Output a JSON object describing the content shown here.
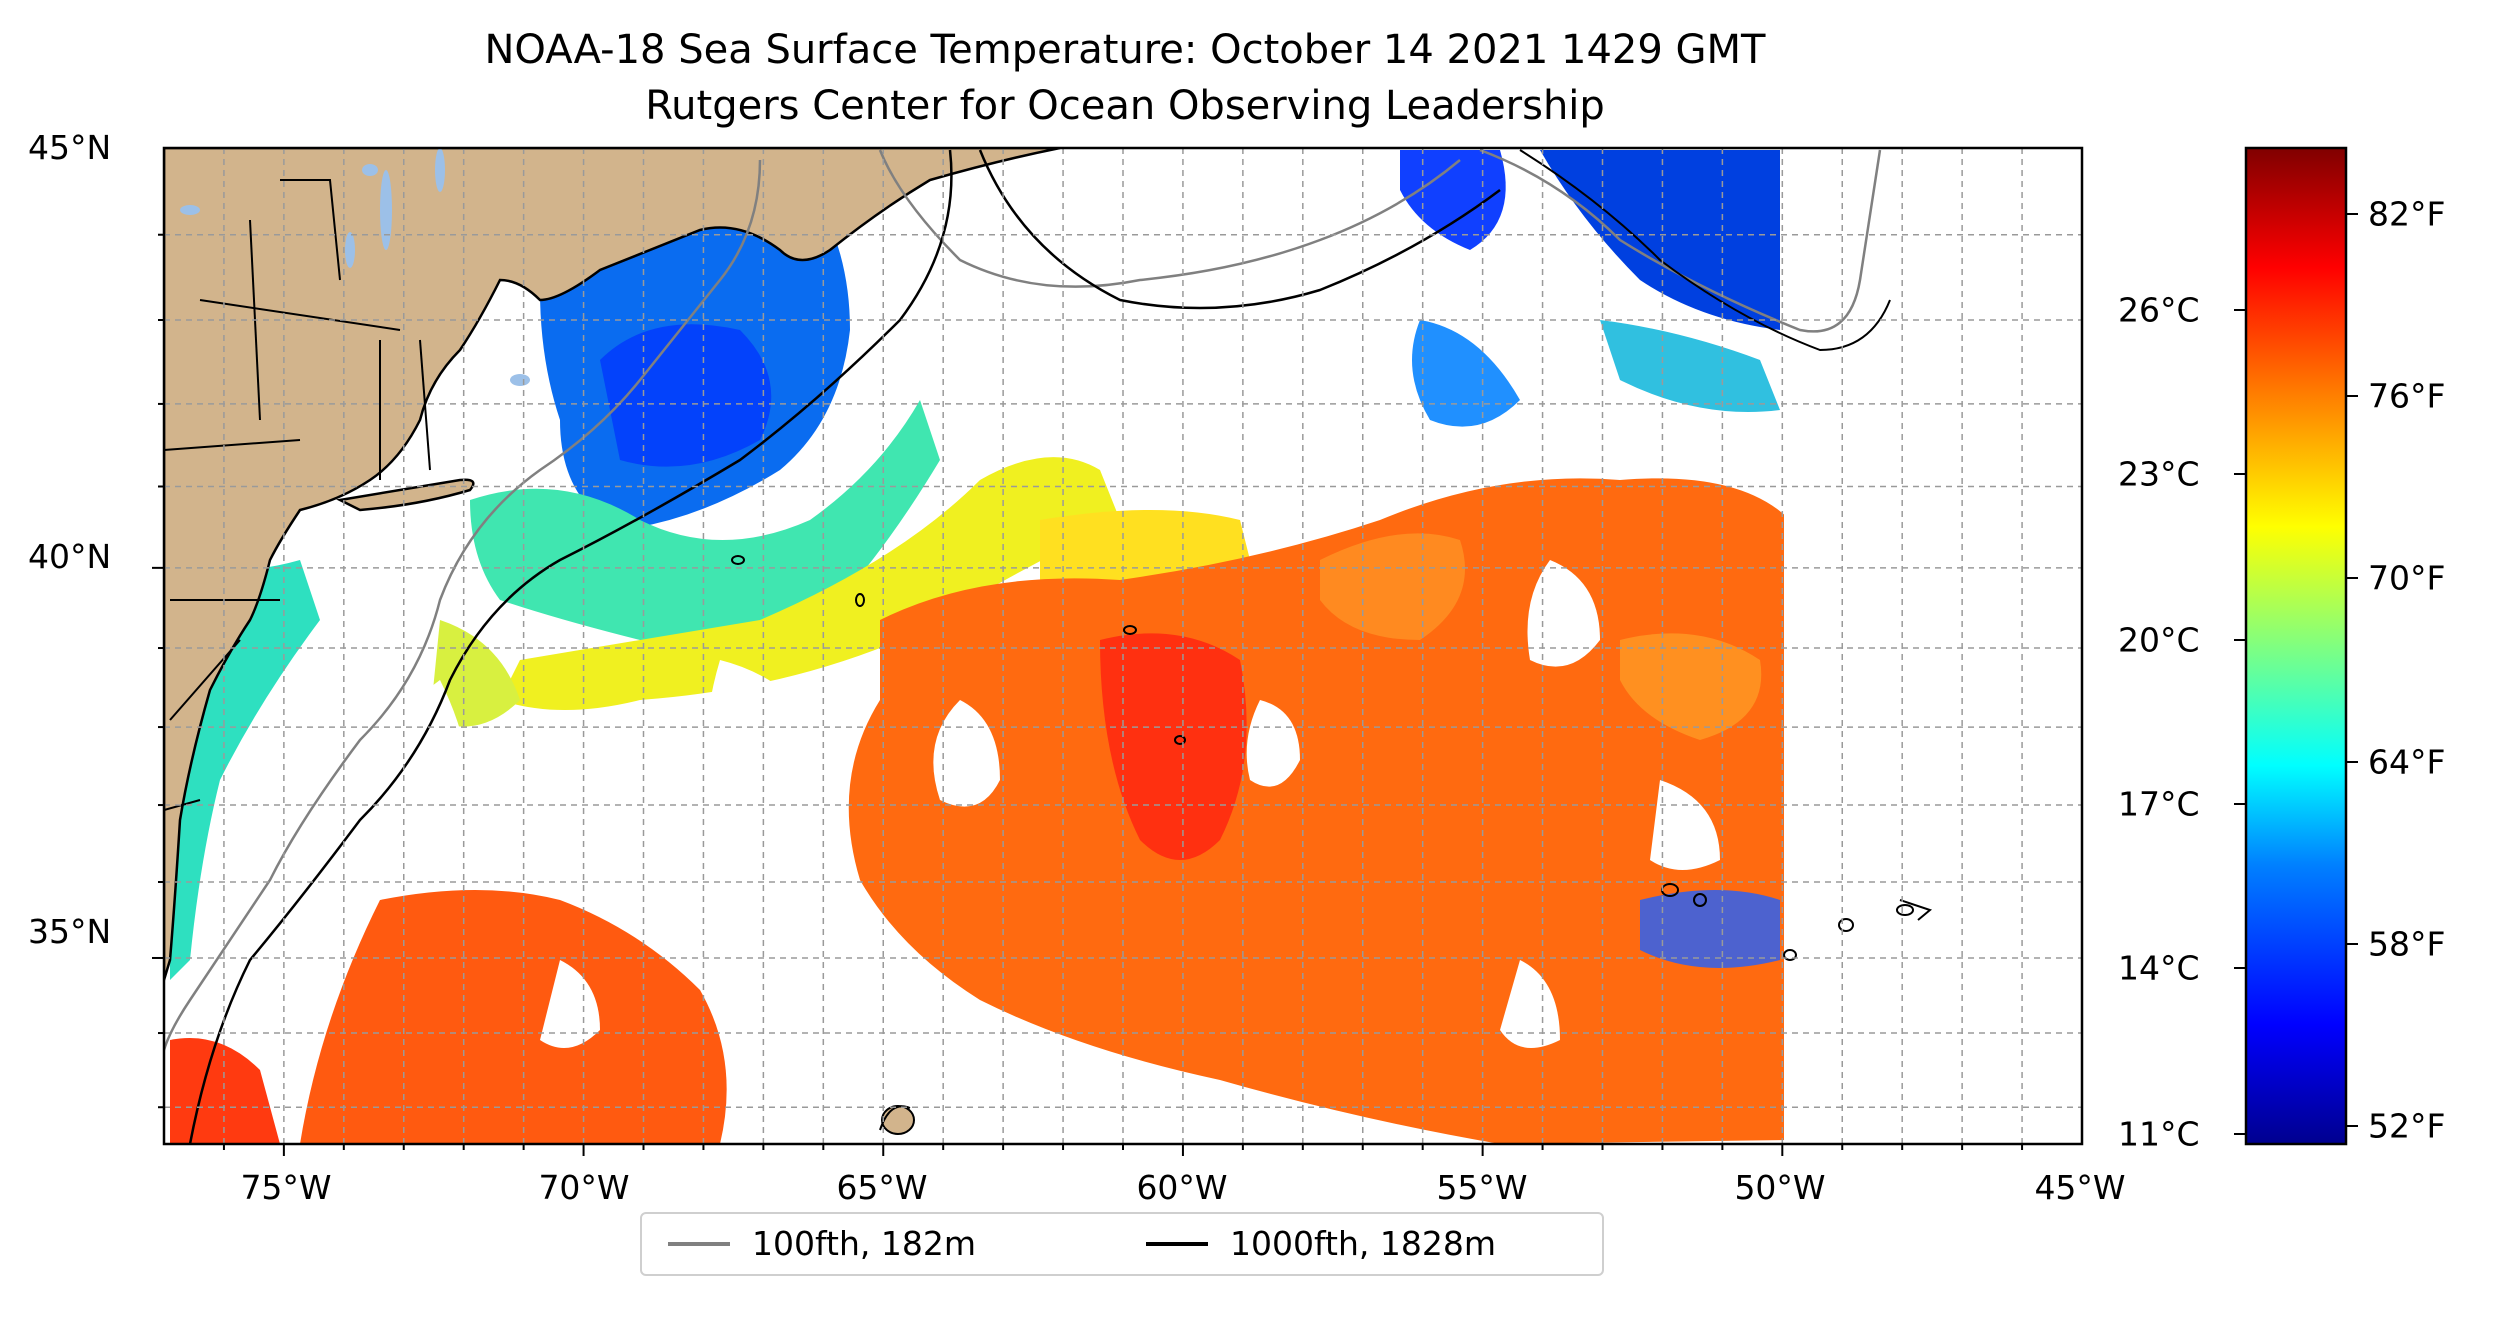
{
  "title_line1": "NOAA-18 Sea Surface Temperature: October 14 2021 1429 GMT",
  "title_line2": "Rutgers Center for Ocean Observing Leadership",
  "map": {
    "lon_range": [
      -77,
      -45
    ],
    "lat_range": [
      32.5,
      45
    ],
    "x_ticks": [
      "75°W",
      "70°W",
      "65°W",
      "60°W",
      "55°W",
      "50°W",
      "45°W"
    ],
    "y_ticks": [
      "45°N",
      "40°N",
      "35°N"
    ],
    "gridlines": true,
    "land_color": "#d2b48c",
    "lake_color": "#9cc0e8"
  },
  "colorbar": {
    "celsius_labels": [
      "26°C",
      "23°C",
      "20°C",
      "17°C",
      "14°C",
      "11°C"
    ],
    "fahrenheit_labels": [
      "82°F",
      "76°F",
      "70°F",
      "64°F",
      "58°F",
      "52°F"
    ],
    "colormap": "jet",
    "colors": [
      "#00008f",
      "#0000ff",
      "#0080ff",
      "#00ffff",
      "#80ff80",
      "#ffff00",
      "#ff8000",
      "#ff0000",
      "#800000"
    ]
  },
  "legend": {
    "items": [
      {
        "label": "100fth, 182m",
        "color": "#808080"
      },
      {
        "label": "1000fth, 1828m",
        "color": "#000000"
      }
    ]
  }
}
